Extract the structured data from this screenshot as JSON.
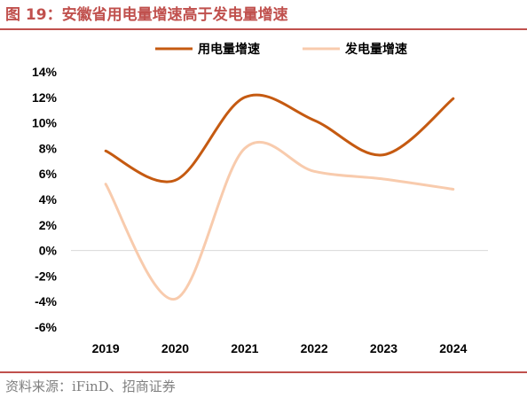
{
  "figure": {
    "title": "图 19：安徽省用电量增速高于发电量增速",
    "source": "资料来源：iFinD、招商证券"
  },
  "chart_data": {
    "type": "line",
    "categories": [
      "2019",
      "2020",
      "2021",
      "2022",
      "2023",
      "2024"
    ],
    "series": [
      {
        "name": "用电量增速",
        "color": "#C55A11",
        "values": [
          7.8,
          5.5,
          12.0,
          10.2,
          7.5,
          11.9
        ]
      },
      {
        "name": "发电量增速",
        "color": "#F8CBAD",
        "values": [
          5.2,
          -3.8,
          8.0,
          6.2,
          5.6,
          4.8
        ]
      }
    ],
    "ylim": [
      -6,
      14
    ],
    "yticks": [
      "14%",
      "12%",
      "10%",
      "8%",
      "6%",
      "4%",
      "2%",
      "0%",
      "-2%",
      "-4%",
      "-6%"
    ],
    "legend_position": "top",
    "grid": false
  }
}
